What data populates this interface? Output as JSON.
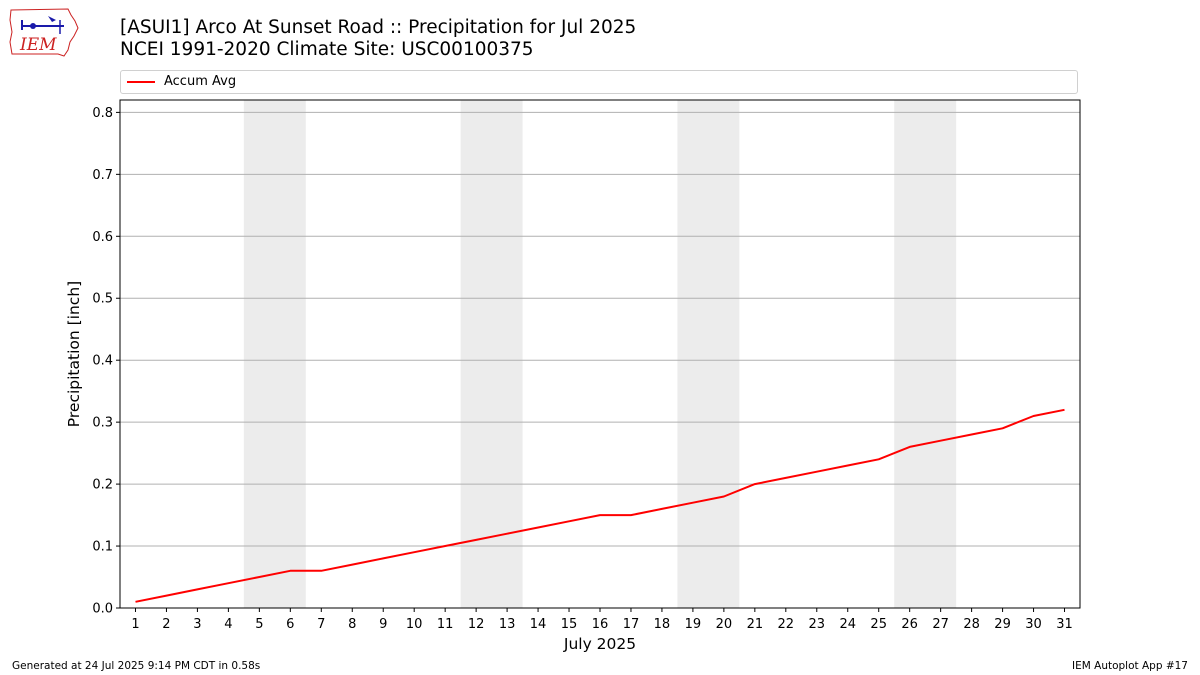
{
  "header": {
    "logo_text": "IEM",
    "title_line1": "[ASUI1] Arco At Sunset Road :: Precipitation for Jul 2025",
    "title_line2": "NCEI 1991-2020 Climate Site: USC00100375"
  },
  "footer": {
    "left": "Generated at 24 Jul 2025 9:14 PM CDT in 0.58s",
    "right": "IEM Autoplot App #17"
  },
  "colors": {
    "line": "#ff0000",
    "weekend_band": "#ececec",
    "grid": "#b0b0b0",
    "logo_red": "#cc2222",
    "logo_blue": "#1a1aaa"
  },
  "chart_data": {
    "type": "line",
    "xlabel": "July 2025",
    "ylabel": "Precipitation [inch]",
    "x": [
      1,
      2,
      3,
      4,
      5,
      6,
      7,
      8,
      9,
      10,
      11,
      12,
      13,
      14,
      15,
      16,
      17,
      18,
      19,
      20,
      21,
      22,
      23,
      24,
      25,
      26,
      27,
      28,
      29,
      30,
      31
    ],
    "xlim": [
      0.5,
      31.5
    ],
    "ylim": [
      0,
      0.82
    ],
    "yticks": [
      0.0,
      0.1,
      0.2,
      0.3,
      0.4,
      0.5,
      0.6,
      0.7,
      0.8
    ],
    "ytick_labels": [
      "0.0",
      "0.1",
      "0.2",
      "0.3",
      "0.4",
      "0.5",
      "0.6",
      "0.7",
      "0.8"
    ],
    "grid": "horizontal",
    "legend_position": "top",
    "weekend_bands": [
      [
        4.5,
        6.5
      ],
      [
        11.5,
        13.5
      ],
      [
        18.5,
        20.5
      ],
      [
        25.5,
        27.5
      ]
    ],
    "series": [
      {
        "name": "Accum Avg",
        "color": "#ff0000",
        "values": [
          0.01,
          0.02,
          0.03,
          0.04,
          0.05,
          0.06,
          0.06,
          0.07,
          0.08,
          0.09,
          0.1,
          0.11,
          0.12,
          0.13,
          0.14,
          0.15,
          0.15,
          0.16,
          0.17,
          0.18,
          0.2,
          0.21,
          0.22,
          0.23,
          0.24,
          0.26,
          0.27,
          0.28,
          0.29,
          0.31,
          0.32
        ]
      }
    ]
  }
}
